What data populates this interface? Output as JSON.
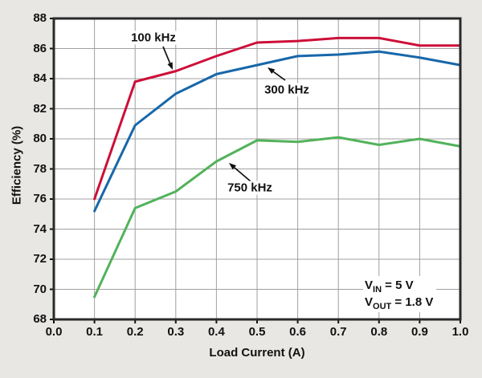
{
  "page": {
    "background": "#e8e7e4"
  },
  "chart_data": {
    "type": "line",
    "title": "",
    "xlabel": "Load Current (A)",
    "ylabel": "Efficiency (%)",
    "xlim": [
      0.0,
      1.0
    ],
    "ylim": [
      68,
      88
    ],
    "grid": true,
    "grid_color": "#a0a0a0",
    "border_color": "#2a2a2a",
    "plot_bg": "#ffffff",
    "x_tick_values": [
      0.0,
      0.1,
      0.2,
      0.3,
      0.4,
      0.5,
      0.6,
      0.7,
      0.8,
      0.9,
      1.0
    ],
    "x_tick_labels": [
      "0.0",
      "0.1",
      "0.2",
      "0.3",
      "0.4",
      "0.5",
      "0.6",
      "0.7",
      "0.8",
      "0.9",
      "1.0"
    ],
    "y_tick_values": [
      68,
      70,
      72,
      74,
      76,
      78,
      80,
      82,
      84,
      86,
      88
    ],
    "y_tick_labels": [
      "68",
      "70",
      "72",
      "74",
      "76",
      "78",
      "80",
      "82",
      "84",
      "86",
      "88"
    ],
    "x": [
      0.1,
      0.2,
      0.3,
      0.4,
      0.5,
      0.6,
      0.7,
      0.8,
      0.9,
      1.0
    ],
    "series": [
      {
        "name": "100 kHz",
        "color": "#cc0f38",
        "values": [
          76.0,
          83.8,
          84.5,
          85.5,
          86.4,
          86.5,
          86.7,
          86.7,
          86.2,
          86.2
        ]
      },
      {
        "name": "300 kHz",
        "color": "#1767aa",
        "values": [
          75.2,
          80.9,
          83.0,
          84.3,
          84.9,
          85.5,
          85.6,
          85.8,
          85.4,
          84.9
        ]
      },
      {
        "name": "750 kHz",
        "color": "#52b25b",
        "values": [
          69.5,
          75.4,
          76.5,
          78.5,
          79.9,
          79.8,
          80.1,
          79.6,
          80.0,
          79.5
        ]
      }
    ],
    "annotations": [
      {
        "label": "100 kHz",
        "cx": 191,
        "cy": 47,
        "ax1": 203,
        "ay1": 58,
        "ax2": 215,
        "ay2": 87
      },
      {
        "label": "300 kHz",
        "cx": 357,
        "cy": 112,
        "ax1": 355,
        "ay1": 100,
        "ax2": 333,
        "ay2": 84
      },
      {
        "label": "750 kHz",
        "cx": 311,
        "cy": 234,
        "ax1": 312,
        "ay1": 226,
        "ax2": 285,
        "ay2": 203
      }
    ],
    "conditions": [
      {
        "v": "V",
        "sub": "IN",
        "rest": " = 5 V"
      },
      {
        "v": "V",
        "sub": "OUT",
        "rest": " = 1.8 V"
      }
    ]
  }
}
